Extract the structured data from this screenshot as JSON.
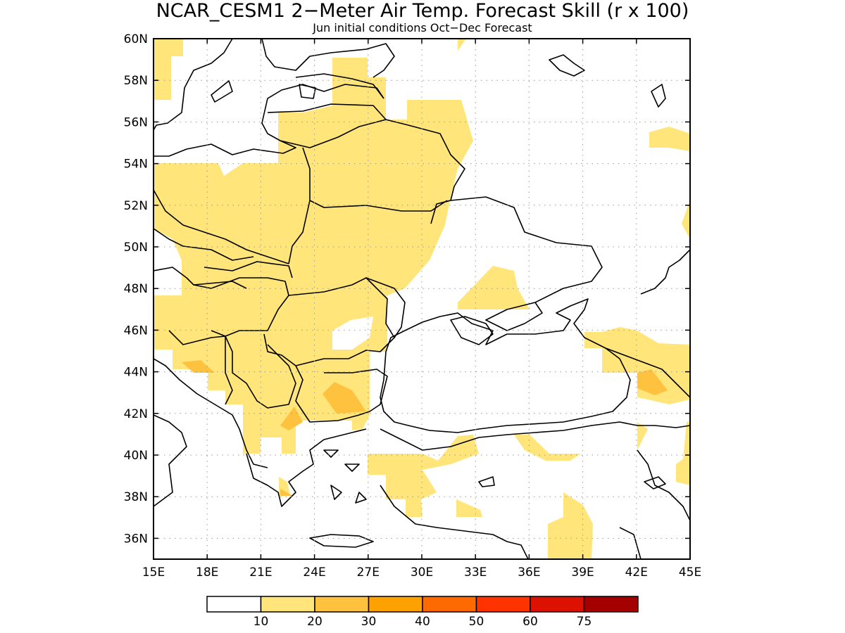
{
  "title": "NCAR_CESM1 2−Meter Air Temp. Forecast Skill (r x 100)",
  "subtitle": "Jun initial conditions  Oct−Dec Forecast",
  "map": {
    "lon_range": [
      15,
      45
    ],
    "lat_range": [
      35,
      60
    ],
    "lon_ticks": [
      "15E",
      "18E",
      "21E",
      "24E",
      "27E",
      "30E",
      "33E",
      "36E",
      "39E",
      "42E",
      "45E"
    ],
    "lat_ticks": [
      "36N",
      "38N",
      "40N",
      "42N",
      "44N",
      "46N",
      "48N",
      "50N",
      "52N",
      "54N",
      "56N",
      "58N",
      "60N"
    ],
    "grid": true
  },
  "colorbar": {
    "labels": [
      "10",
      "20",
      "30",
      "40",
      "50",
      "60",
      "75"
    ],
    "colors": [
      "#ffffff",
      "#ffe57a",
      "#ffc23f",
      "#ffa100",
      "#ff6a00",
      "#ff3300",
      "#dd1100",
      "#a50000"
    ]
  },
  "colors": {
    "level_10_20": "#ffe57a",
    "level_20_30": "#ffc23f",
    "coast": "#000000",
    "grid": "#9a9a9a"
  }
}
